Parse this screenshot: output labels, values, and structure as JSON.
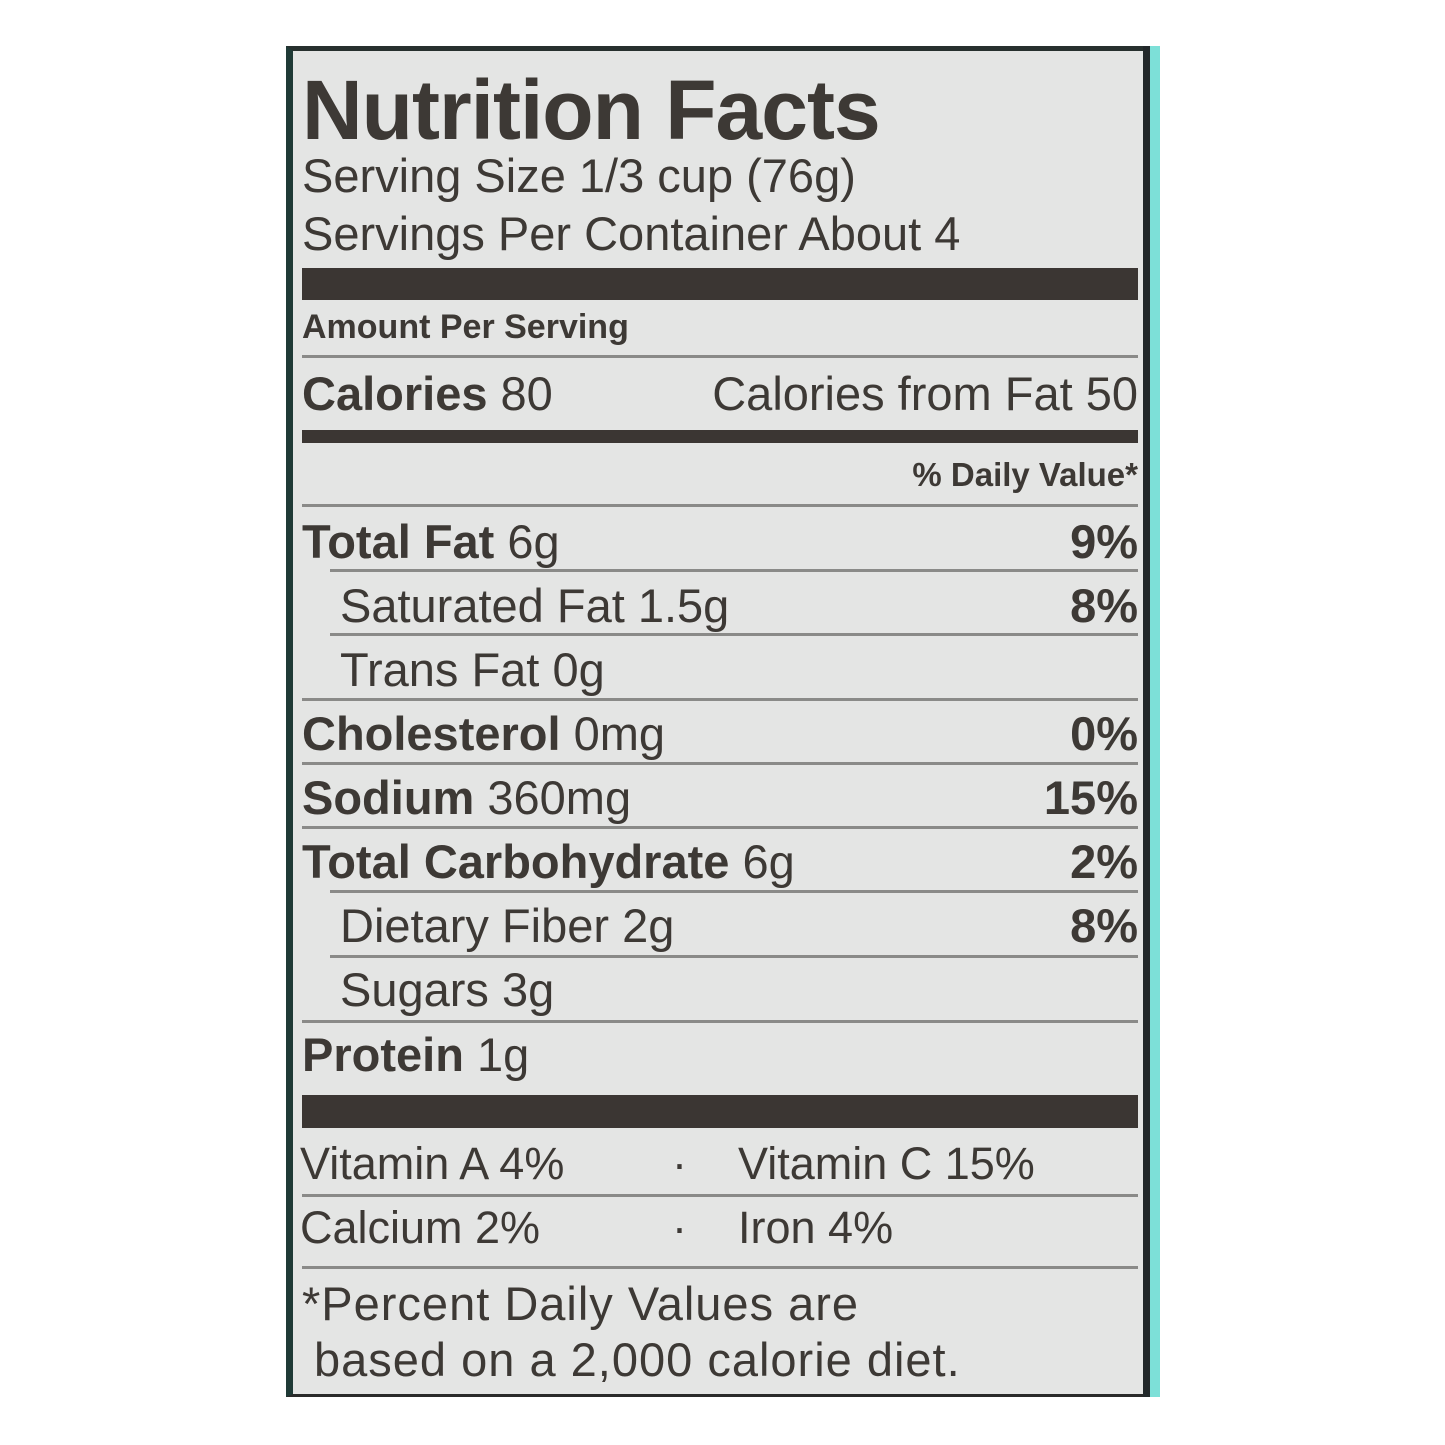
{
  "title": "Nutrition Facts",
  "serving_size": "Serving Size 1/3 cup (76g)",
  "servings_per_container": "Servings Per Container About 4",
  "amount_per_serving": "Amount Per Serving",
  "calories": {
    "label": "Calories",
    "value": "80",
    "from_fat_label": "Calories from Fat",
    "from_fat_value": "50"
  },
  "daily_value_header": "% Daily Value*",
  "nutrients": [
    {
      "label": "Total Fat",
      "amount": "6g",
      "dv": "9%"
    },
    {
      "label": "Saturated Fat",
      "amount": "1.5g",
      "dv": "8%"
    },
    {
      "label": "Trans Fat",
      "amount": "0g",
      "dv": ""
    },
    {
      "label": "Cholesterol",
      "amount": "0mg",
      "dv": "0%"
    },
    {
      "label": "Sodium",
      "amount": "360mg",
      "dv": "15%"
    },
    {
      "label": "Total Carbohydrate",
      "amount": "6g",
      "dv": "2%"
    },
    {
      "label": "Dietary Fiber",
      "amount": "2g",
      "dv": "8%"
    },
    {
      "label": "Sugars",
      "amount": "3g",
      "dv": ""
    },
    {
      "label": "Protein",
      "amount": "1g",
      "dv": ""
    }
  ],
  "vitamins": [
    {
      "left": "Vitamin A 4%",
      "sep": "·",
      "right": "Vitamin C 15%"
    },
    {
      "left": "Calcium 2%",
      "sep": "·",
      "right": "Iron 4%"
    }
  ],
  "footnote": [
    "*Percent Daily Values are",
    "based on a 2,000 calorie diet."
  ],
  "colors": {
    "text": "#3d3935",
    "background": "#e4e5e4",
    "accent_edge": "#7de0d8"
  }
}
